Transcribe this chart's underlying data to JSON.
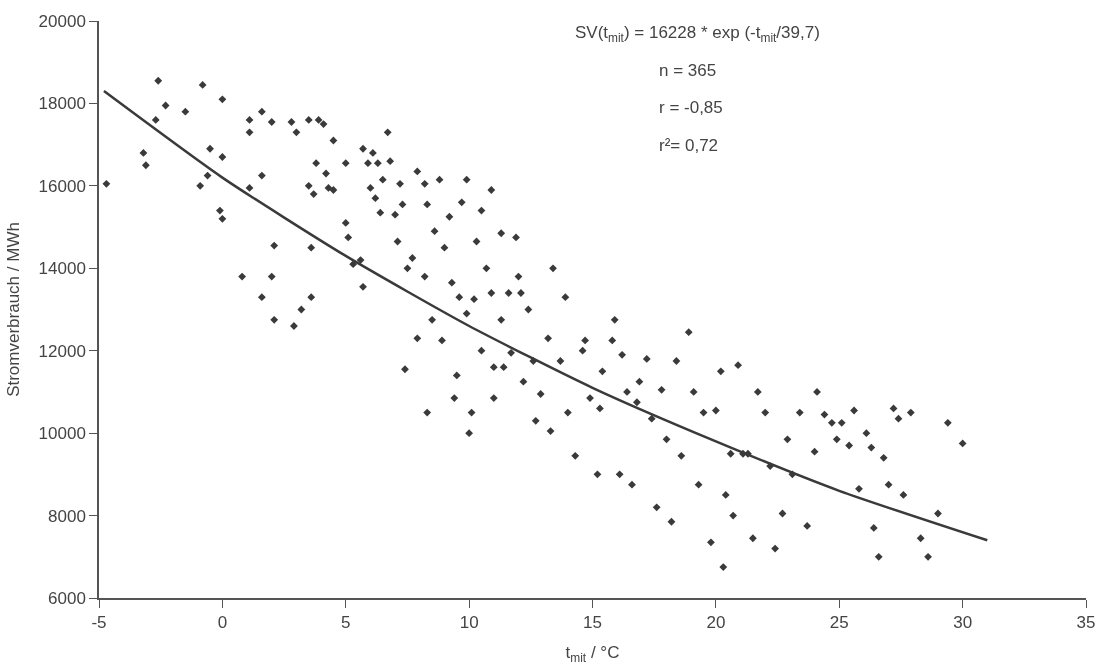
{
  "chart_data": {
    "type": "scatter",
    "xlabel": "t$_{mit}$ / °C",
    "ylabel": "Stromverbrauch / MWh",
    "xlim": [
      -5,
      35
    ],
    "xticks": [
      -5,
      0,
      5,
      10,
      15,
      20,
      25,
      30,
      35
    ],
    "ylim": [
      6000,
      20000
    ],
    "yticks": [
      6000,
      8000,
      10000,
      12000,
      14000,
      16000,
      18000,
      20000
    ],
    "annotations": [
      "SV(t$_{mit}$) = 16228 * exp (-t$_{mit}$/39,7)",
      "n = 365",
      "r = -0,85",
      "r²= 0,72"
    ],
    "series": [
      {
        "color": "#3a3a3a",
        "marker": "diamond",
        "x": [
          -4.7,
          -3.2,
          -3.1,
          -2.6,
          -2.3,
          -2.7,
          -1.5,
          -0.8,
          -0.9,
          -0.6,
          -0.5,
          0,
          0,
          -0.1,
          0,
          0.8,
          1.1,
          1.1,
          1.1,
          1.6,
          1.6,
          1.6,
          2.0,
          2.0,
          2.1,
          2.1,
          2.8,
          2.9,
          3.0,
          3.5,
          3.2,
          3.6,
          3.6,
          3.5,
          3.7,
          3.8,
          3.9,
          4.1,
          4.2,
          4.3,
          4.5,
          4.5,
          5.0,
          5.0,
          5.1,
          5.3,
          5.6,
          5.7,
          5.7,
          5.9,
          6.1,
          6.0,
          6.3,
          6.2,
          6.4,
          6.5,
          6.7,
          6.8,
          7.0,
          7.2,
          7.1,
          7.3,
          7.4,
          7.5,
          7.7,
          7.9,
          7.9,
          8.2,
          8.2,
          8.3,
          8.3,
          8.5,
          8.6,
          8.8,
          8.9,
          9.0,
          9.2,
          9.3,
          9.4,
          9.5,
          9.6,
          9.7,
          9.9,
          9.9,
          10.0,
          10.1,
          10.2,
          10.3,
          10.5,
          10.5,
          10.7,
          10.9,
          10.9,
          11.0,
          11.0,
          11.3,
          11.3,
          11.4,
          11.6,
          11.7,
          11.9,
          12.0,
          12.1,
          12.2,
          12.4,
          12.6,
          12.7,
          12.9,
          13.2,
          13.3,
          13.4,
          13.7,
          13.9,
          14.0,
          14.3,
          14.6,
          14.7,
          14.9,
          15.2,
          15.3,
          15.4,
          15.8,
          15.9,
          16.1,
          16.2,
          16.4,
          16.6,
          16.8,
          16.9,
          17.2,
          17.4,
          17.6,
          17.8,
          18.0,
          18.2,
          18.4,
          18.6,
          18.9,
          19.1,
          19.3,
          19.5,
          19.8,
          20.0,
          20.2,
          20.3,
          20.4,
          20.6,
          20.7,
          20.9,
          21.1,
          21.3,
          21.5,
          21.7,
          22.0,
          22.2,
          22.4,
          22.7,
          22.9,
          23.1,
          23.4,
          23.7,
          24.0,
          24.1,
          24.4,
          24.7,
          24.9,
          25.1,
          25.4,
          25.6,
          25.8,
          26.1,
          26.3,
          26.4,
          26.6,
          26.8,
          27.0,
          27.2,
          27.4,
          27.6,
          27.9,
          28.3,
          28.6,
          29.0,
          29.4,
          30.0
        ],
        "values": [
          16050,
          16800,
          16500,
          18550,
          17950,
          17600,
          17800,
          18450,
          16000,
          16250,
          16900,
          16700,
          18100,
          15400,
          15200,
          13800,
          15950,
          17600,
          17300,
          17800,
          16250,
          13300,
          13800,
          17550,
          14550,
          12750,
          17550,
          12600,
          17300,
          17600,
          13000,
          14500,
          13300,
          16000,
          15800,
          16550,
          17600,
          17500,
          16300,
          15950,
          15900,
          17100,
          16550,
          15100,
          14750,
          14100,
          14200,
          13550,
          16900,
          16550,
          16800,
          15950,
          16550,
          15700,
          15350,
          16150,
          17300,
          16600,
          15300,
          16050,
          14650,
          15550,
          11550,
          14000,
          14250,
          12300,
          16350,
          13800,
          16050,
          15550,
          10500,
          12750,
          14900,
          16150,
          12250,
          14500,
          15250,
          13650,
          10850,
          11400,
          13300,
          15600,
          16150,
          12900,
          10000,
          10500,
          13250,
          14650,
          12000,
          15400,
          14000,
          15900,
          13400,
          10850,
          11600,
          14850,
          12750,
          11600,
          13400,
          11950,
          14750,
          13800,
          13400,
          11250,
          13000,
          11750,
          10300,
          10950,
          12300,
          10050,
          14000,
          11750,
          13300,
          10500,
          9450,
          12000,
          12250,
          10850,
          9000,
          10600,
          11500,
          12250,
          12750,
          9000,
          11900,
          11000,
          8750,
          10750,
          11250,
          11800,
          10350,
          8200,
          11050,
          9850,
          7850,
          11750,
          9450,
          12450,
          11000,
          8750,
          10500,
          7350,
          10550,
          11500,
          6750,
          8500,
          9500,
          8000,
          11650,
          9500,
          9500,
          7450,
          11000,
          10500,
          9200,
          7200,
          8050,
          9850,
          9000,
          10500,
          7750,
          9550,
          11000,
          10450,
          10250,
          9850,
          10250,
          9700,
          10550,
          8650,
          10000,
          9650,
          7700,
          7000,
          9400,
          8750,
          10600,
          10350,
          8500,
          10500,
          7450,
          7000,
          8050,
          10250,
          9750
        ]
      },
      {
        "type": "line",
        "color": "#3a3a3a",
        "marker": "none",
        "line_style": "solid",
        "x": [
          -4.8,
          0,
          5,
          10,
          15,
          20,
          25,
          31
        ],
        "values": [
          18300,
          16200,
          14300,
          12600,
          11100,
          9800,
          8600,
          7400
        ]
      }
    ]
  }
}
